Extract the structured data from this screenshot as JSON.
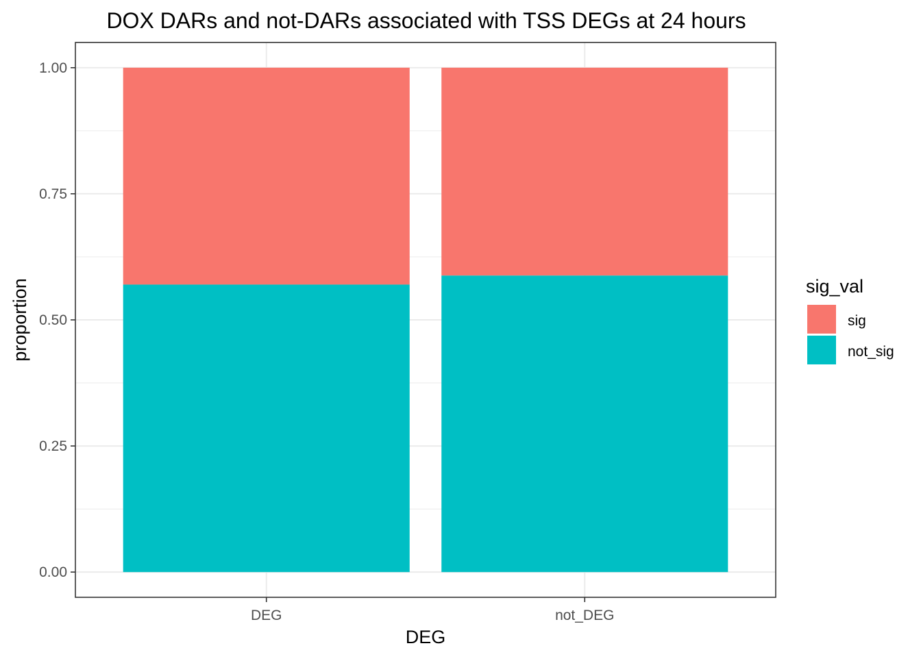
{
  "chart_data": {
    "type": "bar",
    "stacked": true,
    "title": "DOX DARs and not-DARs associated with TSS DEGs at 24 hours",
    "xlabel": "DEG",
    "ylabel": "proportion",
    "categories": [
      "DEG",
      "not_DEG"
    ],
    "series": [
      {
        "name": "not_sig",
        "color": "#00BFC4",
        "values": [
          0.57,
          0.588
        ]
      },
      {
        "name": "sig",
        "color": "#F8766D",
        "values": [
          0.43,
          0.412
        ]
      }
    ],
    "ylim": [
      -0.05,
      1.05
    ],
    "yticks": [
      0,
      0.25,
      0.5,
      0.75,
      1
    ],
    "ytick_labels": [
      "0.00",
      "0.25",
      "0.50",
      "0.75",
      "1.00"
    ],
    "grid": true,
    "legend": {
      "title": "sig_val",
      "position": "right",
      "entries": [
        {
          "label": "sig",
          "color": "#F8766D"
        },
        {
          "label": "not_sig",
          "color": "#00BFC4"
        }
      ]
    }
  }
}
